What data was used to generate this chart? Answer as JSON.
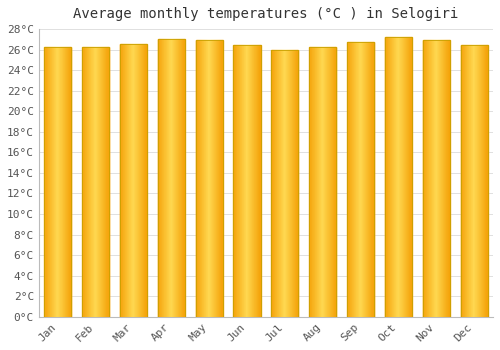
{
  "months": [
    "Jan",
    "Feb",
    "Mar",
    "Apr",
    "May",
    "Jun",
    "Jul",
    "Aug",
    "Sep",
    "Oct",
    "Nov",
    "Dec"
  ],
  "temperatures": [
    26.3,
    26.3,
    26.5,
    27.0,
    26.9,
    26.4,
    26.0,
    26.3,
    26.7,
    27.2,
    26.9,
    26.4
  ],
  "title": "Average monthly temperatures (°C ) in Selogiri",
  "ylim": [
    0,
    28
  ],
  "ytick_step": 2,
  "bar_color_center": "#FFD966",
  "bar_color_edge": "#F0A500",
  "background_color": "#FFFFFF",
  "grid_color": "#E0E0E0",
  "title_fontsize": 10,
  "tick_fontsize": 8,
  "title_font": "monospace",
  "tick_font": "monospace"
}
